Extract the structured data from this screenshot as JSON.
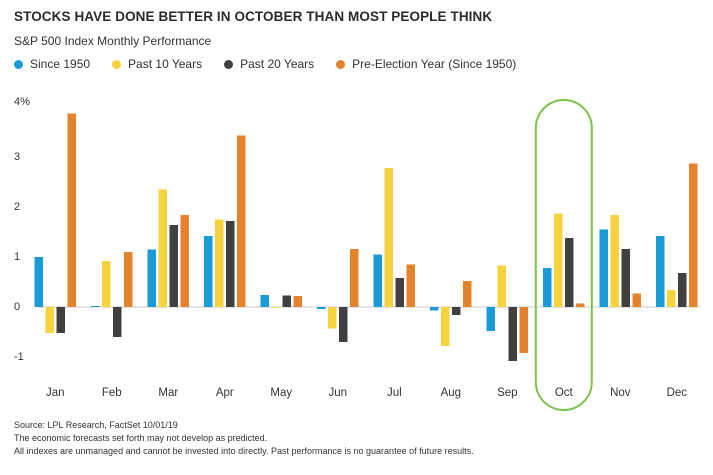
{
  "header": {
    "title": "STOCKS HAVE DONE BETTER IN OCTOBER THAN MOST PEOPLE THINK",
    "subtitle": "S&P 500 Index Monthly Performance"
  },
  "footer": {
    "lines": [
      "Source: LPL Research, FactSet  10/01/19",
      "The economic forecasts set forth may not develop as predicted.",
      "All indexes are unmanaged and cannot be invested into directly. Past performance is no guarantee of future results."
    ]
  },
  "chart_data": {
    "type": "bar",
    "title": "S&P 500 Index Monthly Performance",
    "categories": [
      "Jan",
      "Feb",
      "Mar",
      "Apr",
      "May",
      "Jun",
      "Jul",
      "Aug",
      "Sep",
      "Oct",
      "Nov",
      "Dec"
    ],
    "series": [
      {
        "name": "Since 1950",
        "color": "#1a9ad6",
        "values": [
          1.0,
          0.02,
          1.15,
          1.42,
          0.24,
          -0.04,
          1.05,
          -0.07,
          -0.48,
          0.78,
          1.55,
          1.42
        ]
      },
      {
        "name": "Past 10 Years",
        "color": "#f5d33f",
        "values": [
          -0.52,
          0.92,
          2.35,
          1.75,
          0.0,
          -0.43,
          2.78,
          -0.78,
          0.83,
          1.87,
          1.84,
          0.34
        ]
      },
      {
        "name": "Past 20 Years",
        "color": "#404040",
        "values": [
          -0.52,
          -0.6,
          1.64,
          1.72,
          0.23,
          -0.7,
          0.58,
          -0.16,
          -1.08,
          1.38,
          1.16,
          0.68
        ]
      },
      {
        "name": "Pre-Election Year (Since 1950)",
        "color": "#e5822e",
        "values": [
          3.87,
          1.1,
          1.84,
          3.43,
          0.22,
          1.16,
          0.85,
          0.52,
          -0.92,
          0.07,
          0.27,
          2.87
        ]
      }
    ],
    "yticks": [
      "4%",
      "3",
      "2",
      "1",
      "0",
      "-1"
    ],
    "ylim": [
      -1.5,
      4.2
    ],
    "highlight": {
      "category": "Oct",
      "color": "#7dc24a"
    },
    "xlabel": "",
    "ylabel": "",
    "grid": false,
    "legend": "top-left"
  }
}
